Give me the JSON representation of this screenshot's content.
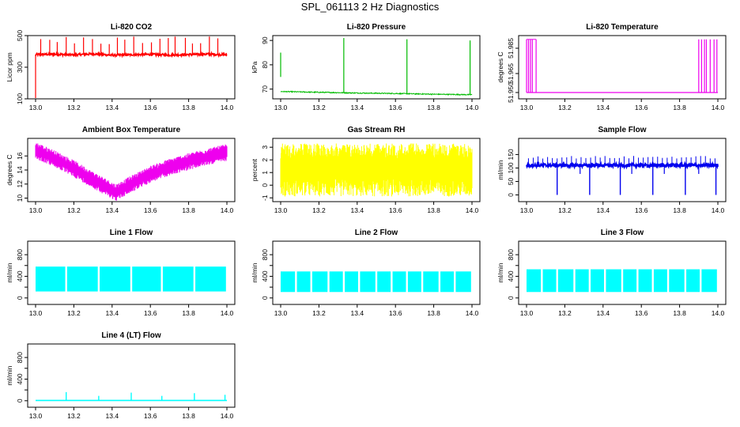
{
  "figure": {
    "title": "SPL_061113  2 Hz Diagnostics"
  },
  "chart_data": [
    {
      "type": "line",
      "title": "Li-820 CO2",
      "ylabel": "Licor ppm",
      "color": "#ff0000",
      "pattern": "co2",
      "xlim": [
        13.0,
        14.0
      ],
      "xticks": [
        "13.0",
        "13.2",
        "13.4",
        "13.6",
        "13.8",
        "14.0"
      ],
      "ylim": [
        100,
        500
      ],
      "yticks": [
        100,
        300,
        500
      ],
      "ytick_labels": [
        "100",
        "300",
        "500"
      ],
      "x": [
        13.0,
        13.1,
        13.2,
        13.3,
        13.4,
        13.5,
        13.6,
        13.7,
        13.8,
        13.9,
        14.0
      ],
      "y": [
        380,
        382,
        378,
        385,
        376,
        379,
        381,
        377,
        380,
        383,
        379
      ]
    },
    {
      "type": "line",
      "title": "Li-820 Pressure",
      "ylabel": "kPa",
      "color": "#00bb00",
      "pattern": "pressure",
      "xlim": [
        13.0,
        14.0
      ],
      "xticks": [
        "13.0",
        "13.2",
        "13.4",
        "13.6",
        "13.8",
        "14.0"
      ],
      "ylim": [
        66,
        92
      ],
      "yticks": [
        70,
        80,
        90
      ],
      "ytick_labels": [
        "70",
        "80",
        "90"
      ],
      "x": [
        13.0,
        13.2,
        13.4,
        13.6,
        13.8,
        14.0
      ],
      "y": [
        69.0,
        68.7,
        68.4,
        68.2,
        67.9,
        67.7
      ]
    },
    {
      "type": "line",
      "title": "Li-820 Temperature",
      "ylabel": "degrees C",
      "color": "#ee00ee",
      "pattern": "temp820",
      "xlim": [
        13.0,
        14.0
      ],
      "xticks": [
        "13.0",
        "13.2",
        "13.4",
        "13.6",
        "13.8",
        "14.0"
      ],
      "ylim": [
        51.945,
        51.995
      ],
      "yticks": [
        51.95,
        51.965,
        51.985
      ],
      "ytick_labels": [
        "51.950",
        "51.965",
        "51.985"
      ],
      "x": [
        13.0,
        13.05,
        13.9,
        14.0
      ],
      "y": [
        51.95,
        51.95,
        51.95,
        51.95
      ]
    },
    {
      "type": "line",
      "title": "Ambient Box Temperature",
      "ylabel": "degrees C",
      "color": "#ee00ee",
      "pattern": "band",
      "xlim": [
        13.0,
        14.0
      ],
      "xticks": [
        "13.0",
        "13.2",
        "13.4",
        "13.6",
        "13.8",
        "14.0"
      ],
      "ylim": [
        9.5,
        18.5
      ],
      "yticks": [
        10,
        12,
        14,
        16
      ],
      "ytick_labels": [
        "10",
        "12",
        "14",
        "16"
      ],
      "x": [
        13.0,
        13.1,
        13.2,
        13.3,
        13.42,
        13.5,
        13.6,
        13.7,
        13.8,
        13.9,
        14.0
      ],
      "y": [
        16.8,
        15.6,
        14.2,
        12.6,
        10.8,
        12.0,
        13.4,
        14.4,
        15.2,
        15.9,
        16.5
      ],
      "band": 1.2
    },
    {
      "type": "line",
      "title": "Gas Stream RH",
      "ylabel": "percent",
      "color": "#ffff00",
      "pattern": "noise",
      "xlim": [
        13.0,
        14.0
      ],
      "xticks": [
        "13.0",
        "13.2",
        "13.4",
        "13.6",
        "13.8",
        "14.0"
      ],
      "ylim": [
        -1.3,
        3.7
      ],
      "yticks": [
        -1,
        0,
        1,
        2,
        3
      ],
      "ytick_labels": [
        "-1",
        "0",
        "1",
        "2",
        "3"
      ],
      "x": [
        13.0,
        14.0
      ],
      "y": [
        1.3,
        1.3
      ],
      "lo": -0.9,
      "hi": 3.3
    },
    {
      "type": "line",
      "title": "Sample Flow",
      "ylabel": "ml/min",
      "color": "#0000ee",
      "pattern": "sample",
      "xlim": [
        13.0,
        14.0
      ],
      "xticks": [
        "13.0",
        "13.2",
        "13.4",
        "13.6",
        "13.8",
        "14.0"
      ],
      "ylim": [
        -25,
        210
      ],
      "yticks": [
        0,
        50,
        100,
        150
      ],
      "ytick_labels": [
        "0",
        "50",
        "100",
        "150"
      ],
      "x": [
        13.0,
        14.0
      ],
      "y": [
        110,
        110
      ],
      "dips": [
        13.16,
        13.33,
        13.49,
        13.66,
        13.83,
        13.99
      ]
    },
    {
      "type": "line",
      "title": "Line 1 Flow",
      "ylabel": "ml/min",
      "color": "#00ffff",
      "pattern": "block",
      "xlim": [
        13.0,
        14.0
      ],
      "xticks": [
        "13.0",
        "13.2",
        "13.4",
        "13.6",
        "13.8",
        "14.0"
      ],
      "ylim": [
        -120,
        1050
      ],
      "yticks": [
        0,
        200,
        400,
        600,
        800
      ],
      "ytick_labels": [
        "0",
        "",
        "400",
        "",
        "800"
      ],
      "x": [
        13.0,
        14.0
      ],
      "y": [
        580,
        580
      ],
      "lo": 120,
      "gaps": [
        13.16,
        13.33,
        13.5,
        13.66,
        13.83
      ]
    },
    {
      "type": "line",
      "title": "Line 2 Flow",
      "ylabel": "ml/min",
      "color": "#00ffff",
      "pattern": "block",
      "xlim": [
        13.0,
        14.0
      ],
      "xticks": [
        "13.0",
        "13.2",
        "13.4",
        "13.6",
        "13.8",
        "14.0"
      ],
      "ylim": [
        -120,
        1050
      ],
      "yticks": [
        0,
        200,
        400,
        600,
        800
      ],
      "ytick_labels": [
        "0",
        "",
        "400",
        "",
        "800"
      ],
      "x": [
        13.0,
        14.0
      ],
      "y": [
        490,
        490
      ],
      "lo": 110,
      "gaps": [
        13.08,
        13.16,
        13.25,
        13.33,
        13.41,
        13.5,
        13.58,
        13.66,
        13.74,
        13.83,
        13.91
      ]
    },
    {
      "type": "line",
      "title": "Line 3 Flow",
      "ylabel": "ml/min",
      "color": "#00ffff",
      "pattern": "block",
      "xlim": [
        13.0,
        14.0
      ],
      "xticks": [
        "13.0",
        "13.2",
        "13.4",
        "13.6",
        "13.8",
        "14.0"
      ],
      "ylim": [
        -120,
        1050
      ],
      "yticks": [
        0,
        200,
        400,
        600,
        800
      ],
      "ytick_labels": [
        "0",
        "",
        "400",
        "",
        "800"
      ],
      "x": [
        13.0,
        14.0
      ],
      "y": [
        530,
        530
      ],
      "lo": 110,
      "gaps": [
        13.08,
        13.16,
        13.25,
        13.33,
        13.41,
        13.5,
        13.58,
        13.66,
        13.74,
        13.83,
        13.91
      ]
    },
    {
      "type": "line",
      "title": "Line 4 (LT) Flow",
      "ylabel": "ml/min",
      "color": "#00ffff",
      "pattern": "flat",
      "xlim": [
        13.0,
        14.0
      ],
      "xticks": [
        "13.0",
        "13.2",
        "13.4",
        "13.6",
        "13.8",
        "14.0"
      ],
      "ylim": [
        -120,
        1050
      ],
      "yticks": [
        0,
        200,
        400,
        600,
        800
      ],
      "ytick_labels": [
        "0",
        "",
        "400",
        "",
        "800"
      ],
      "x": [
        13.0,
        14.0
      ],
      "y": [
        5,
        5
      ],
      "spikes": [
        13.16,
        13.33,
        13.5,
        13.66,
        13.83,
        13.99
      ]
    }
  ]
}
